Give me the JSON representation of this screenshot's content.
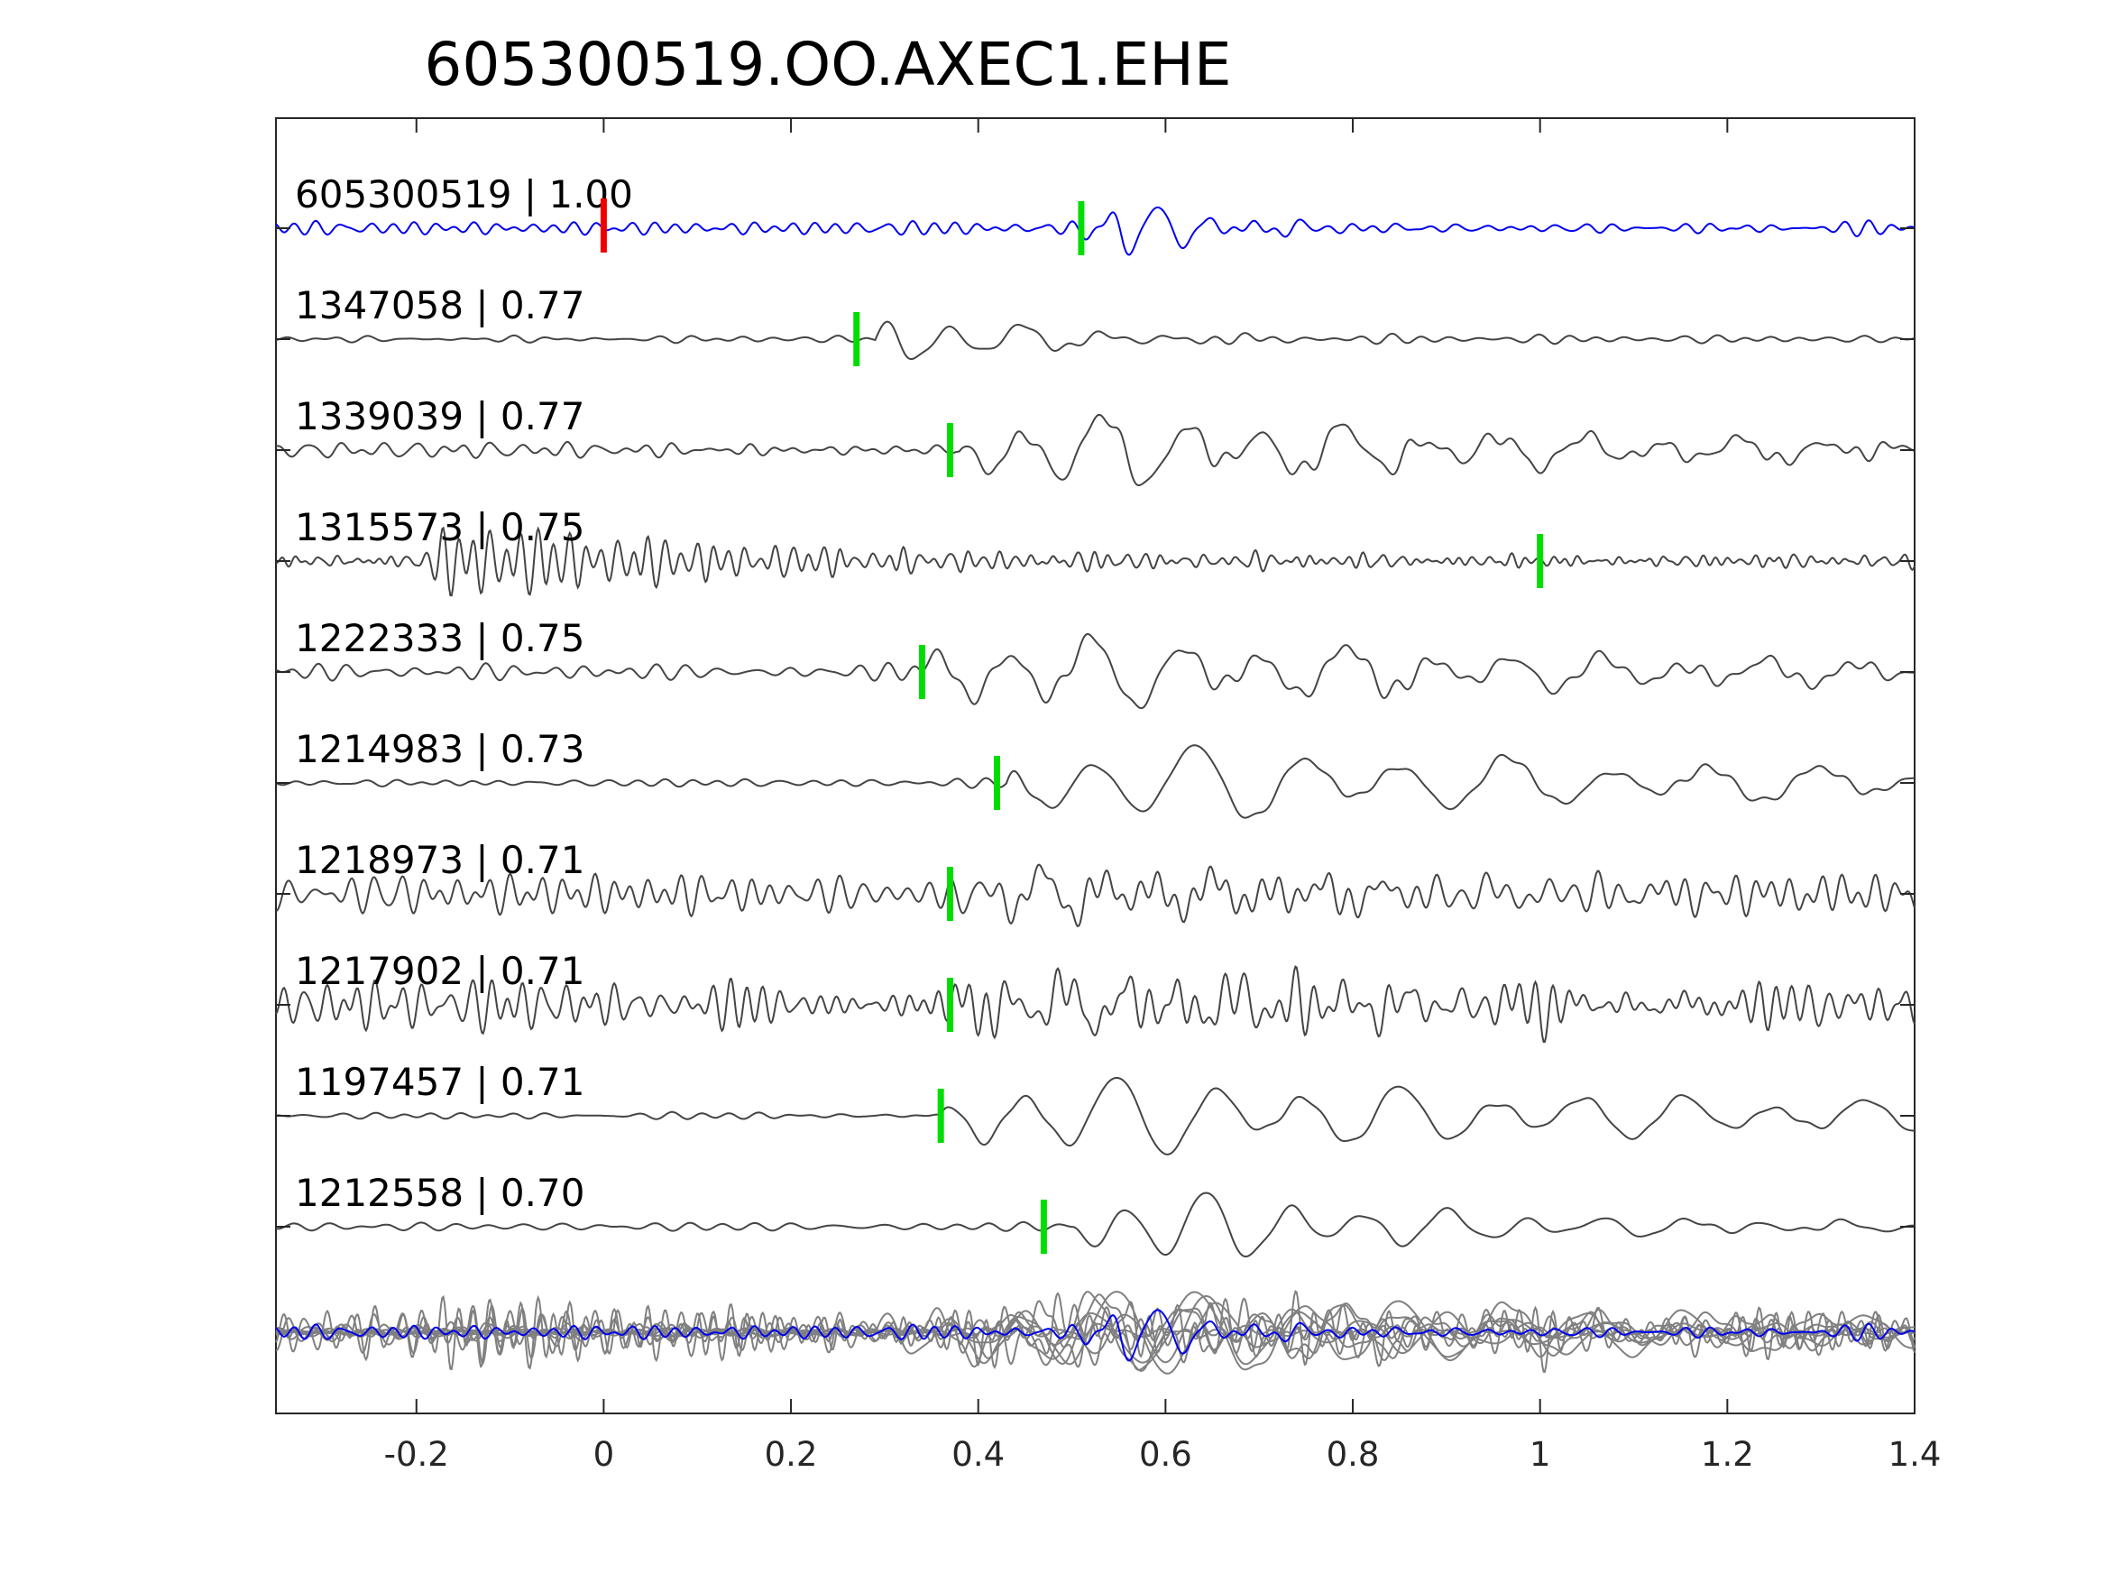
{
  "chart_data": {
    "type": "line",
    "title": "605300519.OO.AXEC1.EHE",
    "xlabel": "",
    "ylabel": "",
    "xlim": [
      -0.35,
      1.4
    ],
    "x_ticks": [
      {
        "value": -0.2,
        "label": "-0.2"
      },
      {
        "value": 0,
        "label": "0"
      },
      {
        "value": 0.2,
        "label": "0.2"
      },
      {
        "value": 0.4,
        "label": "0.4"
      },
      {
        "value": 0.6,
        "label": "0.6"
      },
      {
        "value": 0.8,
        "label": "0.8"
      },
      {
        "value": 1.0,
        "label": "1"
      },
      {
        "value": 1.2,
        "label": "1.2"
      },
      {
        "value": 1.4,
        "label": "1.4"
      }
    ],
    "colors": {
      "template": "#0000ee",
      "trace": "#444444",
      "stack": "#808080",
      "pick_origin": "#ee0000",
      "pick_arrival": "#00dd00",
      "axis": "#262626"
    },
    "traces": [
      {
        "label": "605300519 | 1.00",
        "id": "605300519",
        "cc": 1.0,
        "pick_time": 0.51,
        "origin_time": 0.0,
        "template": true,
        "onset": 0.51,
        "amp": 1.0,
        "period": 0.052,
        "decay": 0.09,
        "noise": 0.14,
        "noise_period": 0.028,
        "seed": 11
      },
      {
        "label": "1347058 | 0.77",
        "id": "1347058",
        "cc": 0.77,
        "pick_time": 0.27,
        "onset": 0.29,
        "amp": 0.9,
        "period": 0.08,
        "decay": 0.12,
        "noise": 0.07,
        "noise_period": 0.035,
        "seed": 23
      },
      {
        "label": "1339039 | 0.77",
        "id": "1339039",
        "cc": 0.77,
        "pick_time": 0.37,
        "onset": 0.38,
        "amp": 0.8,
        "period": 0.085,
        "decay": 0.6,
        "noise": 0.18,
        "noise_period": 0.03,
        "seed": 37
      },
      {
        "label": "1315573 | 0.75",
        "id": "1315573",
        "cc": 0.75,
        "pick_time": 1.0,
        "onset": -0.2,
        "amp": 0.75,
        "period": 0.017,
        "decay": 0.35,
        "noise": 0.12,
        "noise_period": 0.016,
        "seed": 41
      },
      {
        "label": "1222333 | 0.75",
        "id": "1222333",
        "cc": 0.75,
        "pick_time": 0.34,
        "onset": 0.34,
        "amp": 0.8,
        "period": 0.09,
        "decay": 0.7,
        "noise": 0.2,
        "noise_period": 0.03,
        "seed": 53
      },
      {
        "label": "1214983 | 0.73",
        "id": "1214983",
        "cc": 0.73,
        "pick_time": 0.42,
        "onset": 0.43,
        "amp": 0.85,
        "period": 0.11,
        "decay": 0.8,
        "noise": 0.08,
        "noise_period": 0.035,
        "seed": 67
      },
      {
        "label": "1218973 | 0.71",
        "id": "1218973",
        "cc": 0.71,
        "pick_time": 0.37,
        "onset": 0.37,
        "amp": 0.5,
        "period": 0.06,
        "decay": 0.5,
        "noise": 0.42,
        "noise_period": 0.02,
        "seed": 71
      },
      {
        "label": "1217902 | 0.71",
        "id": "1217902",
        "cc": 0.71,
        "pick_time": 0.37,
        "onset": 0.37,
        "amp": 0.5,
        "period": 0.06,
        "decay": 0.5,
        "noise": 0.42,
        "noise_period": 0.02,
        "seed": 83
      },
      {
        "label": "1197457 | 0.71",
        "id": "1197457",
        "cc": 0.71,
        "pick_time": 0.36,
        "onset": 0.36,
        "amp": 0.85,
        "period": 0.1,
        "decay": 0.9,
        "noise": 0.07,
        "noise_period": 0.035,
        "seed": 97
      },
      {
        "label": "1212558 | 0.70",
        "id": "1212558",
        "cc": 0.7,
        "pick_time": 0.47,
        "onset": 0.5,
        "amp": 0.9,
        "period": 0.085,
        "decay": 0.35,
        "noise": 0.08,
        "noise_period": 0.035,
        "seed": 101
      }
    ]
  }
}
